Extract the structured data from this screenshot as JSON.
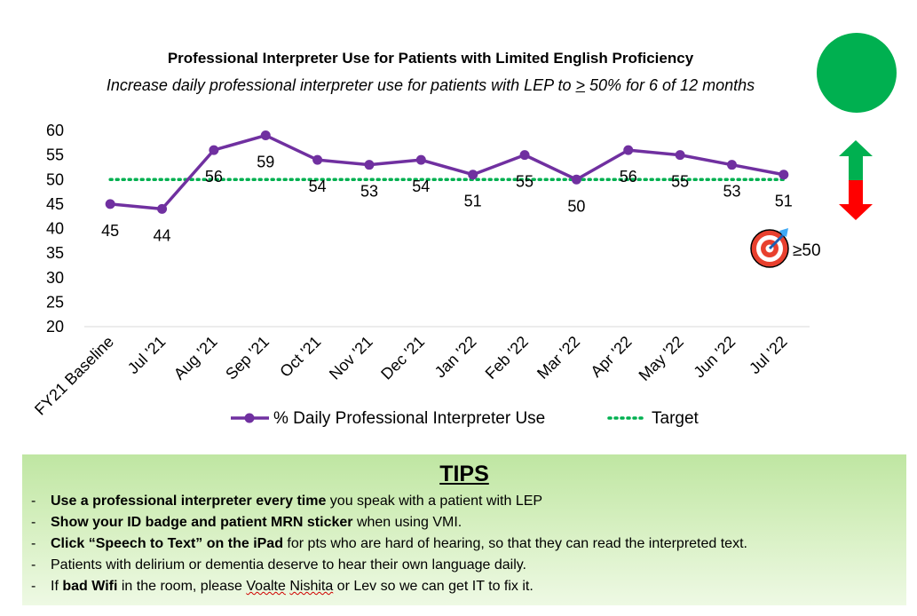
{
  "header": {
    "title": "Professional Interpreter Use for Patients with Limited English Proficiency",
    "subtitle_before": "Increase daily professional interpreter use for patients with LEP to ",
    "subtitle_underlined": ">",
    "subtitle_after": " 50% for 6 of 12 months"
  },
  "status": {
    "light_color": "#00b050",
    "arrow_up_color": "#00b050",
    "arrow_down_color": "#ff0000",
    "target_icon": "bullseye-icon",
    "target_label": "≥50"
  },
  "chart_data": {
    "type": "line",
    "categories": [
      "FY21 Baseline",
      "Jul '21",
      "Aug '21",
      "Sep '21",
      "Oct '21",
      "Nov '21",
      "Dec '21",
      "Jan '22",
      "Feb '22",
      "Mar '22",
      "Apr '22",
      "May '22",
      "Jun '22",
      "Jul '22"
    ],
    "series": [
      {
        "name": "% Daily Professional Interpreter Use",
        "values": [
          45,
          44,
          56,
          59,
          54,
          53,
          54,
          51,
          55,
          50,
          56,
          55,
          53,
          51
        ],
        "color": "#7030a0"
      },
      {
        "name": "Target",
        "values": [
          50,
          50,
          50,
          50,
          50,
          50,
          50,
          50,
          50,
          50,
          50,
          50,
          50,
          50
        ],
        "color": "#00b050",
        "style": "dotted"
      }
    ],
    "ylim": [
      20,
      60
    ],
    "yticks": [
      20,
      25,
      30,
      35,
      40,
      45,
      50,
      55,
      60
    ],
    "grid": false,
    "legend": "bottom",
    "data_labels": true
  },
  "tips": {
    "title": "TIPS",
    "items": [
      {
        "bold": "Use a professional interpreter every time",
        "rest": " you speak with a patient with LEP"
      },
      {
        "bold": "Show your ID badge and patient MRN sticker",
        "rest": " when using VMI."
      },
      {
        "bold": "Click “Speech to Text” on the iPad",
        "rest": " for pts who are hard of hearing, so that they can read the interpreted text."
      },
      {
        "bold": "",
        "rest": "Patients with delirium or dementia deserve to hear their own language daily."
      }
    ],
    "last": {
      "pre": "If ",
      "bold": "bad Wifi",
      "mid": " in the room, please ",
      "name1": "Voalte",
      "space": " ",
      "name2": "Nishita",
      "post": " or Lev so we can get IT to fix it."
    },
    "bullet": "-"
  }
}
